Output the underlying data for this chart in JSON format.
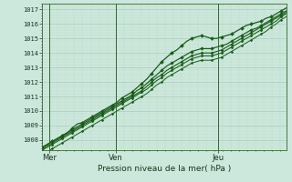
{
  "title": "Pression niveau de la mer( hPa )",
  "bg_color": "#cce8dc",
  "grid_major_color": "#aacaba",
  "grid_minor_color": "#bbdacc",
  "line_color": "#1a5c1a",
  "ylim": [
    1007.3,
    1017.4
  ],
  "yticks": [
    1008,
    1009,
    1010,
    1011,
    1012,
    1013,
    1014,
    1015,
    1016,
    1017
  ],
  "day_labels": [
    "Mer",
    "Ven",
    "Jeu"
  ],
  "day_positions": [
    0.03,
    0.3,
    0.72
  ],
  "num_points": 50,
  "series": [
    [
      1007.5,
      1007.7,
      1007.9,
      1008.1,
      1008.3,
      1008.5,
      1008.8,
      1009.1,
      1009.2,
      1009.4,
      1009.6,
      1009.8,
      1010.0,
      1010.2,
      1010.4,
      1010.6,
      1010.9,
      1011.1,
      1011.3,
      1011.6,
      1011.9,
      1012.2,
      1012.6,
      1013.0,
      1013.4,
      1013.7,
      1014.0,
      1014.2,
      1014.5,
      1014.8,
      1015.0,
      1015.1,
      1015.2,
      1015.1,
      1015.0,
      1015.0,
      1015.1,
      1015.2,
      1015.3,
      1015.5,
      1015.7,
      1015.9,
      1016.0,
      1016.1,
      1016.2,
      1016.4,
      1016.5,
      1016.7,
      1016.9,
      1017.1
    ],
    [
      1007.5,
      1007.7,
      1007.9,
      1008.1,
      1008.3,
      1008.5,
      1008.7,
      1008.9,
      1009.1,
      1009.3,
      1009.5,
      1009.7,
      1009.9,
      1010.1,
      1010.3,
      1010.5,
      1010.7,
      1010.9,
      1011.1,
      1011.4,
      1011.6,
      1011.9,
      1012.2,
      1012.5,
      1012.8,
      1013.1,
      1013.3,
      1013.5,
      1013.7,
      1013.9,
      1014.1,
      1014.2,
      1014.3,
      1014.3,
      1014.3,
      1014.4,
      1014.5,
      1014.6,
      1014.8,
      1015.0,
      1015.2,
      1015.4,
      1015.6,
      1015.7,
      1015.9,
      1016.1,
      1016.3,
      1016.5,
      1016.7,
      1016.9
    ],
    [
      1007.4,
      1007.6,
      1007.8,
      1008.0,
      1008.2,
      1008.4,
      1008.6,
      1008.8,
      1009.0,
      1009.2,
      1009.4,
      1009.6,
      1009.8,
      1010.0,
      1010.2,
      1010.4,
      1010.6,
      1010.8,
      1011.0,
      1011.2,
      1011.4,
      1011.7,
      1012.0,
      1012.3,
      1012.5,
      1012.8,
      1013.0,
      1013.2,
      1013.4,
      1013.6,
      1013.8,
      1013.9,
      1014.0,
      1014.0,
      1014.0,
      1014.1,
      1014.2,
      1014.4,
      1014.6,
      1014.8,
      1015.0,
      1015.2,
      1015.4,
      1015.6,
      1015.8,
      1016.0,
      1016.2,
      1016.4,
      1016.6,
      1016.8
    ],
    [
      1007.3,
      1007.5,
      1007.7,
      1007.9,
      1008.1,
      1008.3,
      1008.5,
      1008.7,
      1008.9,
      1009.1,
      1009.3,
      1009.5,
      1009.7,
      1009.9,
      1010.1,
      1010.3,
      1010.5,
      1010.7,
      1010.9,
      1011.1,
      1011.3,
      1011.5,
      1011.8,
      1012.1,
      1012.3,
      1012.6,
      1012.8,
      1013.0,
      1013.2,
      1013.4,
      1013.6,
      1013.7,
      1013.8,
      1013.8,
      1013.8,
      1013.9,
      1014.0,
      1014.2,
      1014.4,
      1014.6,
      1014.8,
      1015.0,
      1015.2,
      1015.4,
      1015.6,
      1015.8,
      1016.0,
      1016.2,
      1016.5,
      1016.7
    ],
    [
      1007.0,
      1007.2,
      1007.4,
      1007.6,
      1007.8,
      1008.0,
      1008.2,
      1008.4,
      1008.6,
      1008.8,
      1009.0,
      1009.2,
      1009.4,
      1009.6,
      1009.8,
      1010.0,
      1010.2,
      1010.4,
      1010.6,
      1010.8,
      1011.0,
      1011.2,
      1011.5,
      1011.8,
      1012.0,
      1012.3,
      1012.5,
      1012.7,
      1012.9,
      1013.1,
      1013.3,
      1013.4,
      1013.5,
      1013.5,
      1013.5,
      1013.6,
      1013.7,
      1013.9,
      1014.1,
      1014.3,
      1014.5,
      1014.7,
      1014.9,
      1015.1,
      1015.3,
      1015.5,
      1015.8,
      1016.0,
      1016.3,
      1016.5
    ]
  ]
}
